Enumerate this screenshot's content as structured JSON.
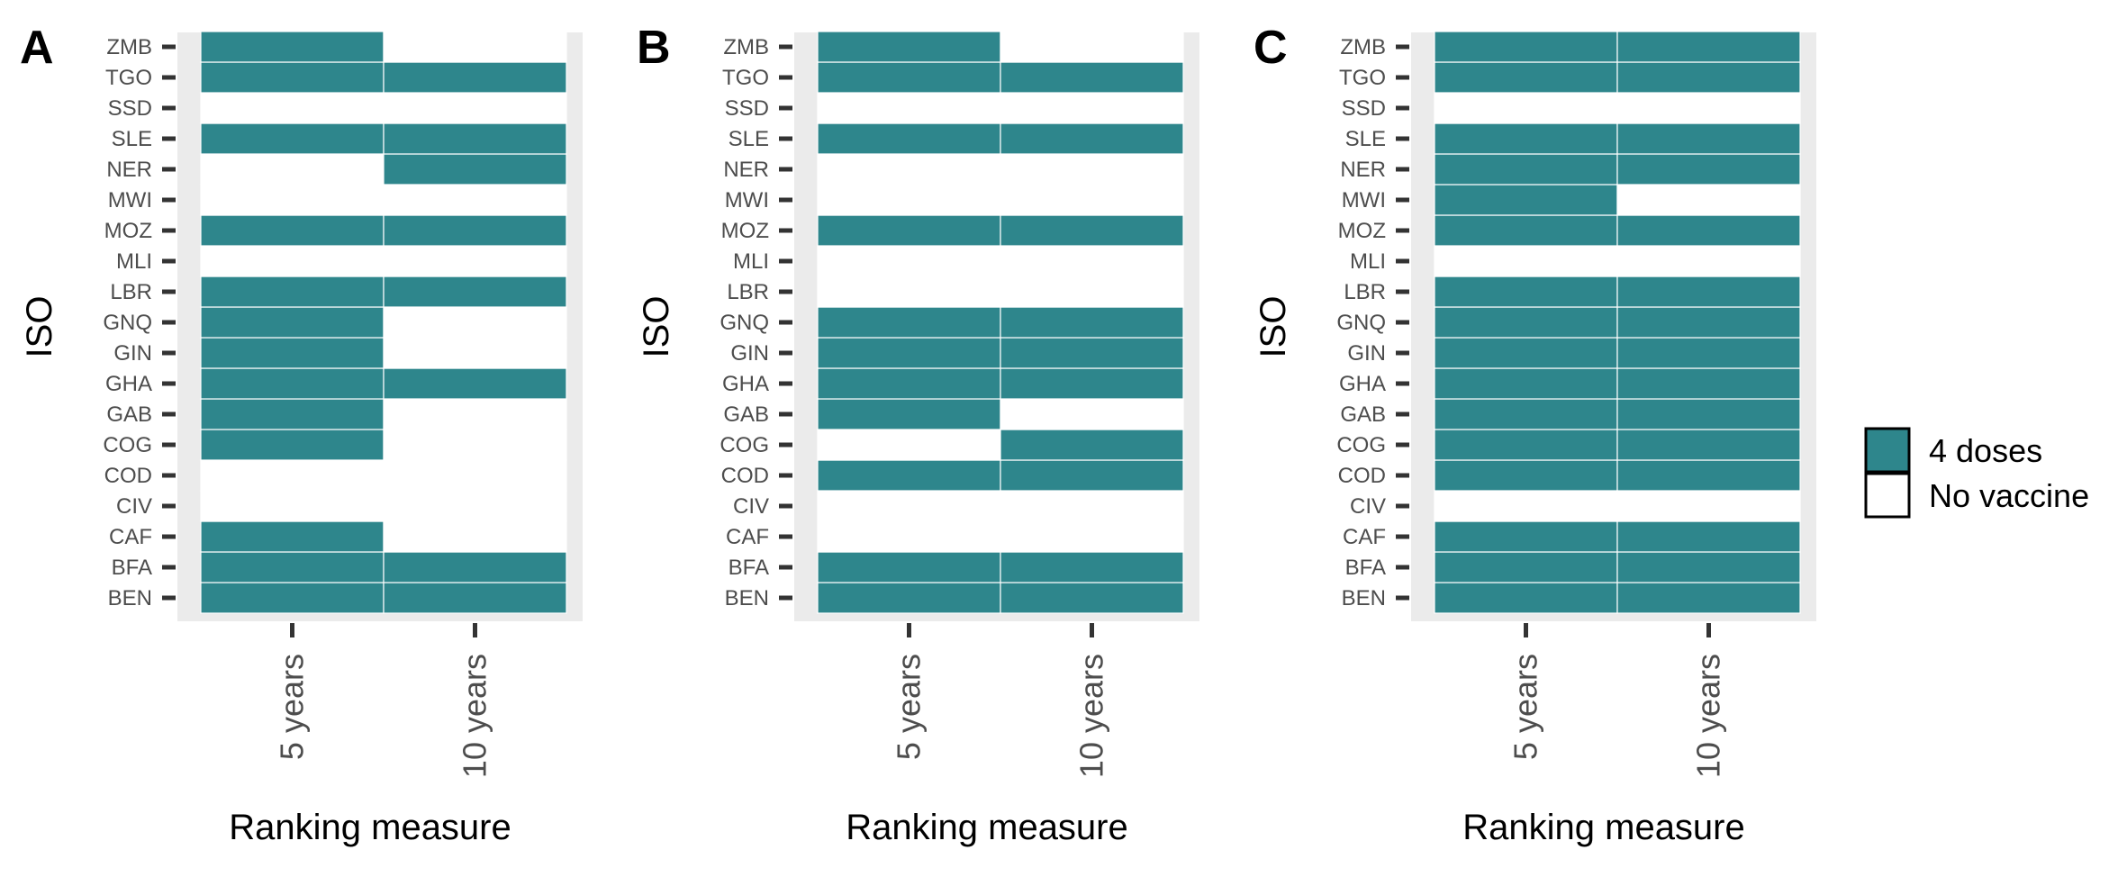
{
  "chart_data": [
    {
      "type": "heatmap",
      "panel_label": "A",
      "xlabel": "Ranking measure",
      "ylabel": "ISO",
      "x_categories": [
        "5 years",
        "10 years"
      ],
      "y_categories": [
        "BEN",
        "BFA",
        "CAF",
        "CIV",
        "COD",
        "COG",
        "GAB",
        "GHA",
        "GIN",
        "GNQ",
        "LBR",
        "MLI",
        "MOZ",
        "MWI",
        "NER",
        "SLE",
        "SSD",
        "TGO",
        "ZMB"
      ],
      "cells": {
        "5 years": [
          "4 doses",
          "4 doses",
          "4 doses",
          "No vaccine",
          "No vaccine",
          "4 doses",
          "4 doses",
          "4 doses",
          "4 doses",
          "4 doses",
          "4 doses",
          "No vaccine",
          "4 doses",
          "No vaccine",
          "No vaccine",
          "4 doses",
          "No vaccine",
          "4 doses",
          "4 doses"
        ],
        "10 years": [
          "4 doses",
          "4 doses",
          "No vaccine",
          "No vaccine",
          "No vaccine",
          "No vaccine",
          "No vaccine",
          "4 doses",
          "No vaccine",
          "No vaccine",
          "4 doses",
          "No vaccine",
          "4 doses",
          "No vaccine",
          "4 doses",
          "4 doses",
          "No vaccine",
          "4 doses",
          "No vaccine"
        ]
      }
    },
    {
      "type": "heatmap",
      "panel_label": "B",
      "xlabel": "Ranking measure",
      "ylabel": "ISO",
      "x_categories": [
        "5 years",
        "10 years"
      ],
      "y_categories": [
        "BEN",
        "BFA",
        "CAF",
        "CIV",
        "COD",
        "COG",
        "GAB",
        "GHA",
        "GIN",
        "GNQ",
        "LBR",
        "MLI",
        "MOZ",
        "MWI",
        "NER",
        "SLE",
        "SSD",
        "TGO",
        "ZMB"
      ],
      "cells": {
        "5 years": [
          "4 doses",
          "4 doses",
          "No vaccine",
          "No vaccine",
          "4 doses",
          "No vaccine",
          "4 doses",
          "4 doses",
          "4 doses",
          "4 doses",
          "No vaccine",
          "No vaccine",
          "4 doses",
          "No vaccine",
          "No vaccine",
          "4 doses",
          "No vaccine",
          "4 doses",
          "4 doses"
        ],
        "10 years": [
          "4 doses",
          "4 doses",
          "No vaccine",
          "No vaccine",
          "4 doses",
          "4 doses",
          "No vaccine",
          "4 doses",
          "4 doses",
          "4 doses",
          "No vaccine",
          "No vaccine",
          "4 doses",
          "No vaccine",
          "No vaccine",
          "4 doses",
          "No vaccine",
          "4 doses",
          "No vaccine"
        ]
      }
    },
    {
      "type": "heatmap",
      "panel_label": "C",
      "xlabel": "Ranking measure",
      "ylabel": "ISO",
      "x_categories": [
        "5 years",
        "10 years"
      ],
      "y_categories": [
        "BEN",
        "BFA",
        "CAF",
        "CIV",
        "COD",
        "COG",
        "GAB",
        "GHA",
        "GIN",
        "GNQ",
        "LBR",
        "MLI",
        "MOZ",
        "MWI",
        "NER",
        "SLE",
        "SSD",
        "TGO",
        "ZMB"
      ],
      "cells": {
        "5 years": [
          "4 doses",
          "4 doses",
          "4 doses",
          "No vaccine",
          "4 doses",
          "4 doses",
          "4 doses",
          "4 doses",
          "4 doses",
          "4 doses",
          "4 doses",
          "No vaccine",
          "4 doses",
          "4 doses",
          "4 doses",
          "4 doses",
          "No vaccine",
          "4 doses",
          "4 doses"
        ],
        "10 years": [
          "4 doses",
          "4 doses",
          "4 doses",
          "No vaccine",
          "4 doses",
          "4 doses",
          "4 doses",
          "4 doses",
          "4 doses",
          "4 doses",
          "4 doses",
          "No vaccine",
          "4 doses",
          "No vaccine",
          "4 doses",
          "4 doses",
          "No vaccine",
          "4 doses",
          "4 doses"
        ]
      }
    }
  ],
  "legend": {
    "placement": "right",
    "items": [
      {
        "label": "4 doses",
        "color": "#2e868c"
      },
      {
        "label": "No vaccine",
        "color": "#ffffff"
      }
    ]
  },
  "colors": {
    "filled": "#2e868c",
    "panel_background": "#ebebeb",
    "tile_background": "#ffffff"
  }
}
